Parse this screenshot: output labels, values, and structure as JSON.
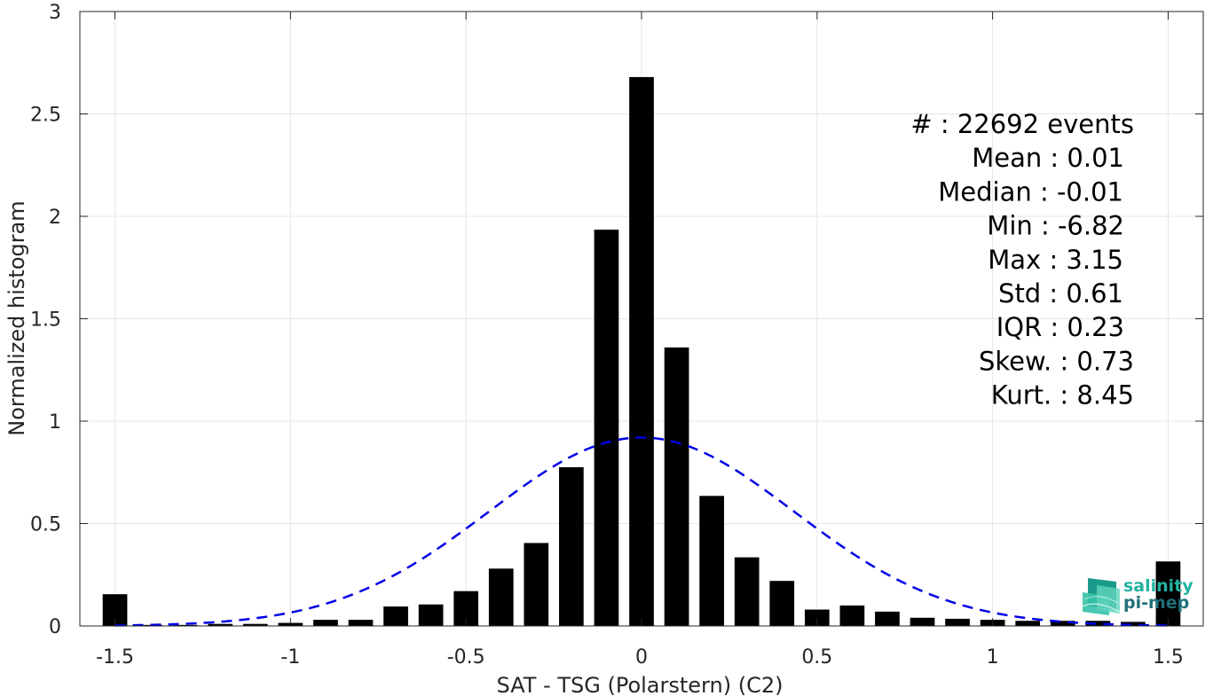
{
  "chart_data": {
    "type": "bar",
    "xlabel": "SAT - TSG (Polarstern) (C2)",
    "ylabel": "Normalized histogram",
    "xlim": [
      -1.6,
      1.6
    ],
    "ylim": [
      0,
      3
    ],
    "grid": true,
    "xticks": [
      -1.5,
      -1,
      -0.5,
      0,
      0.5,
      1,
      1.5
    ],
    "xtick_labels": [
      "-1.5",
      "-1",
      "-0.5",
      "0",
      "0.5",
      "1",
      "1.5"
    ],
    "yticks": [
      0,
      0.5,
      1,
      1.5,
      2,
      2.5,
      3
    ],
    "ytick_labels": [
      "0",
      "0.5",
      "1",
      "1.5",
      "2",
      "2.5",
      "3"
    ],
    "bar_width": 0.07,
    "bars": [
      {
        "x": -1.5,
        "y": 0.155
      },
      {
        "x": -1.4,
        "y": 0.005
      },
      {
        "x": -1.3,
        "y": 0.005
      },
      {
        "x": -1.2,
        "y": 0.01
      },
      {
        "x": -1.1,
        "y": 0.01
      },
      {
        "x": -1.0,
        "y": 0.015
      },
      {
        "x": -0.9,
        "y": 0.03
      },
      {
        "x": -0.8,
        "y": 0.03
      },
      {
        "x": -0.7,
        "y": 0.095
      },
      {
        "x": -0.6,
        "y": 0.105
      },
      {
        "x": -0.5,
        "y": 0.17
      },
      {
        "x": -0.4,
        "y": 0.28
      },
      {
        "x": -0.3,
        "y": 0.405
      },
      {
        "x": -0.2,
        "y": 0.775
      },
      {
        "x": -0.1,
        "y": 1.935
      },
      {
        "x": 0.0,
        "y": 2.68
      },
      {
        "x": 0.1,
        "y": 1.36
      },
      {
        "x": 0.2,
        "y": 0.635
      },
      {
        "x": 0.3,
        "y": 0.335
      },
      {
        "x": 0.4,
        "y": 0.22
      },
      {
        "x": 0.5,
        "y": 0.08
      },
      {
        "x": 0.6,
        "y": 0.1
      },
      {
        "x": 0.7,
        "y": 0.07
      },
      {
        "x": 0.8,
        "y": 0.04
      },
      {
        "x": 0.9,
        "y": 0.035
      },
      {
        "x": 1.0,
        "y": 0.03
      },
      {
        "x": 1.1,
        "y": 0.025
      },
      {
        "x": 1.2,
        "y": 0.025
      },
      {
        "x": 1.3,
        "y": 0.025
      },
      {
        "x": 1.4,
        "y": 0.02
      },
      {
        "x": 1.5,
        "y": 0.315
      }
    ],
    "fit": {
      "type": "gaussian",
      "mean": 0.0,
      "std": 0.435,
      "peak": 0.92,
      "color": "#0000e6",
      "style": "dashed"
    },
    "bar_color": "#000000",
    "stats": [
      "#  : 22692 events",
      "Mean : 0.01",
      "Median : -0.01",
      "Min : -6.82",
      "Max : 3.15",
      "Std : 0.61",
      "IQR : 0.23",
      "Skew. : 0.73",
      "Kurt. : 8.45"
    ],
    "logo": {
      "line1": "salinity",
      "line2": "pi-mep",
      "color1": "#22b3a0",
      "color2": "#1f6f79"
    }
  }
}
